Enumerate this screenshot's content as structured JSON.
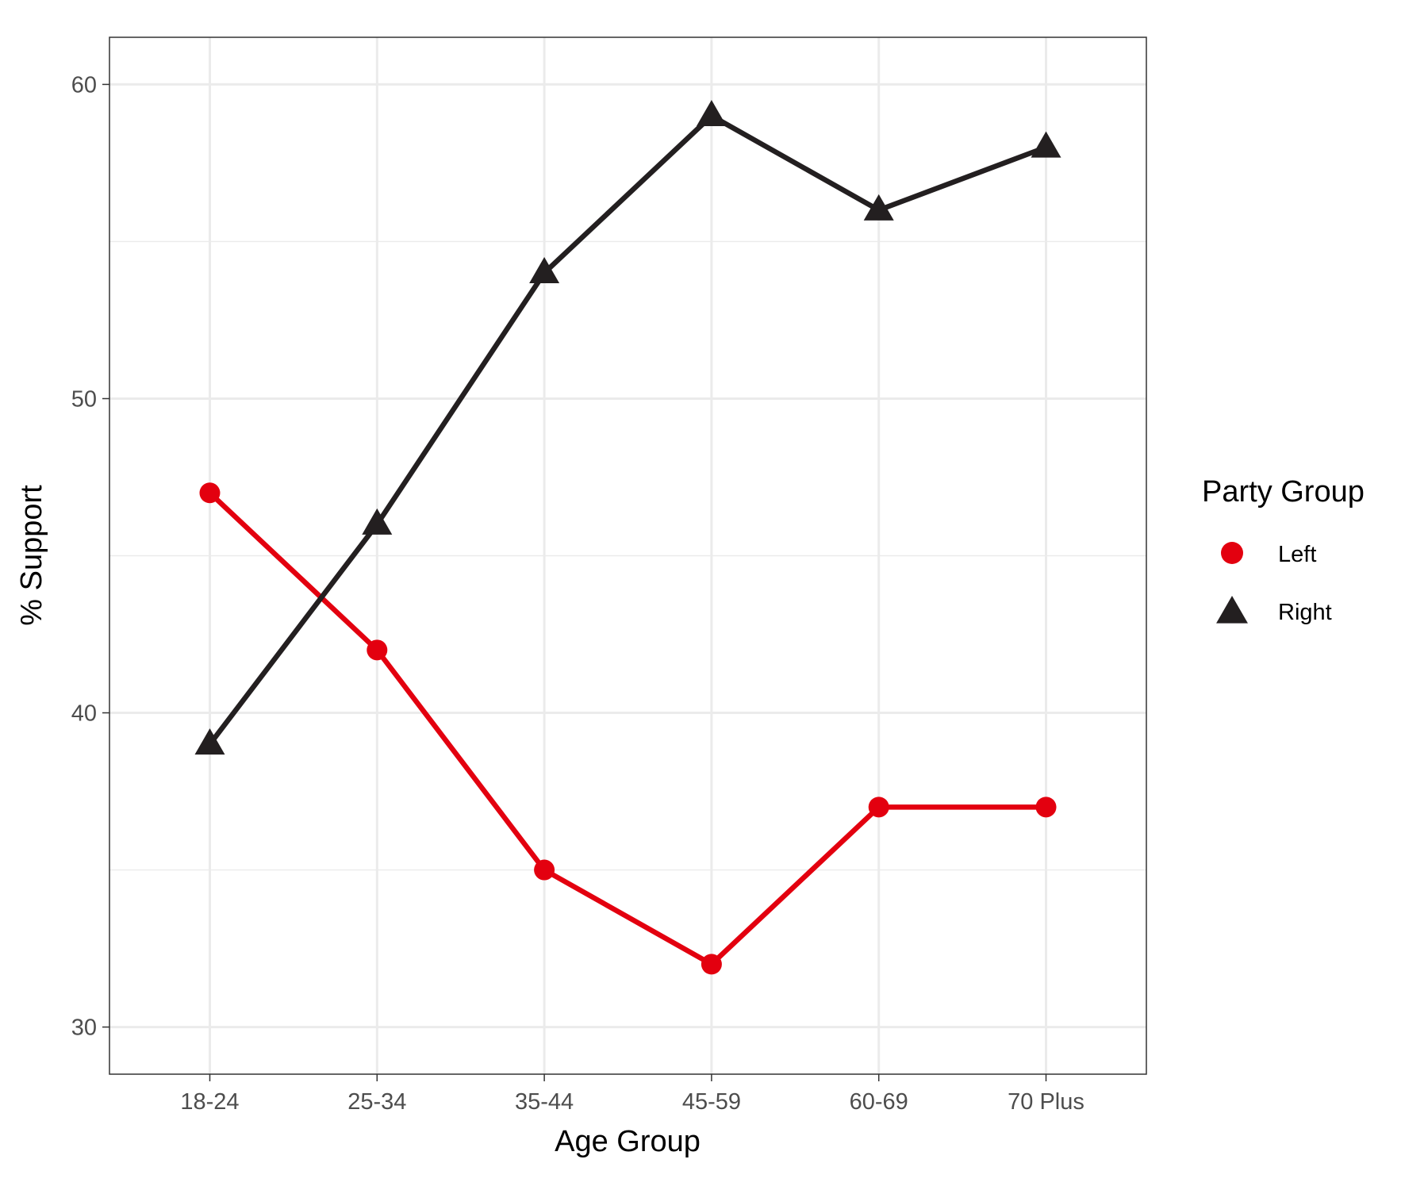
{
  "chart_data": {
    "type": "line",
    "title": "",
    "xlabel": "Age Group",
    "ylabel": "% Support",
    "categories": [
      "18-24",
      "25-34",
      "35-44",
      "45-59",
      "60-69",
      "70 Plus"
    ],
    "series": [
      {
        "name": "Left",
        "values": [
          47,
          42,
          35,
          32,
          37,
          37
        ],
        "color": "#e3000f",
        "marker": "circle"
      },
      {
        "name": "Right",
        "values": [
          39,
          46,
          54,
          59,
          56,
          58
        ],
        "color": "#231f20",
        "marker": "triangle"
      }
    ],
    "ylim": [
      28.5,
      61.5
    ],
    "yticks": [
      30,
      40,
      50,
      60
    ],
    "ytick_labels": [
      "30",
      "40",
      "50",
      "60"
    ],
    "grid": true,
    "legend": {
      "title": "Party Group",
      "position": "right"
    }
  }
}
